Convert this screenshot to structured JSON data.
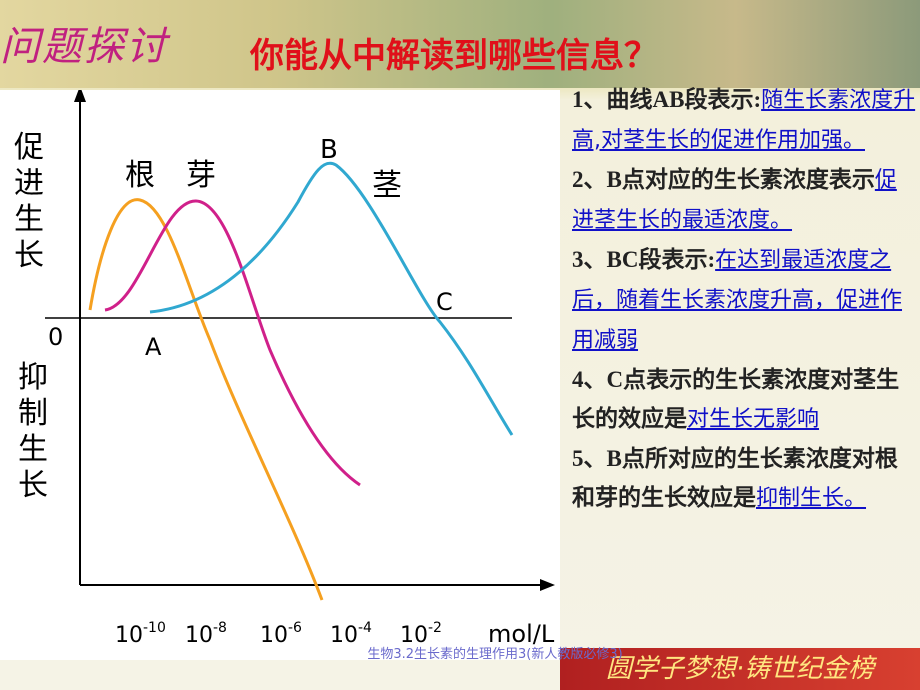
{
  "heading": "问题探讨",
  "question": "你能从中解读到哪些信息？",
  "chart": {
    "y_label_top": "促进生长",
    "y_label_bottom": "抑制生长",
    "origin": "0",
    "curve_labels": {
      "root": "根",
      "bud": "芽",
      "stem": "茎"
    },
    "point_labels": {
      "A": "A",
      "B": "B",
      "C": "C"
    },
    "xticks": [
      {
        "base": "10",
        "exp": "-10"
      },
      {
        "base": "10",
        "exp": "-8"
      },
      {
        "base": "10",
        "exp": "-6"
      },
      {
        "base": "10",
        "exp": "-4"
      },
      {
        "base": "10",
        "exp": "-2"
      }
    ],
    "x_unit": "mol/L"
  },
  "items": [
    {
      "prompt": "1、曲线AB段表示:",
      "answer": "随生长素浓度升高,对茎生长的促进作用加强。"
    },
    {
      "prompt": "2、B点对应的生长素浓度表示",
      "answer": "促进茎生长的最适浓度。"
    },
    {
      "prompt": "3、BC段表示:",
      "answer": "在达到最适浓度之后，随着生长素浓度升高，促进作用减弱"
    },
    {
      "prompt": "4、C点表示的生长素浓度对茎生长的效应是",
      "answer": "对生长无影响"
    },
    {
      "prompt": "5、B点所对应的生长素浓度对根和芽的生长效应是",
      "answer": "抑制生长。"
    }
  ],
  "footer": "生物3.2生长素的生理作用3(新人教版必修3)",
  "banner": "圆学子梦想·铸世纪金榜"
}
